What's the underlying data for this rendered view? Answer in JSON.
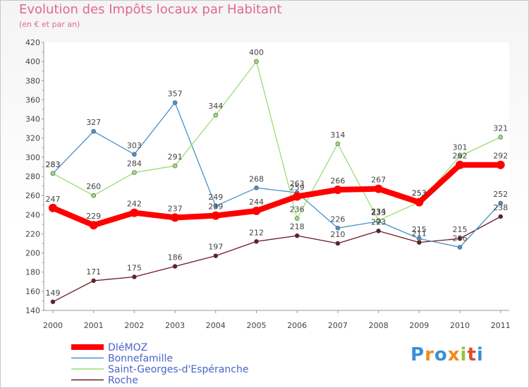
{
  "chart_data": {
    "type": "line",
    "title": "Evolution des Impôts locaux par Habitant",
    "subtitle": "(en € et par an)",
    "x": [
      "2000",
      "2001",
      "2002",
      "2003",
      "2004",
      "2005",
      "2006",
      "2007",
      "2008",
      "2009",
      "2010",
      "2011"
    ],
    "ylim": [
      140,
      420
    ],
    "yticks": [
      140,
      160,
      180,
      200,
      220,
      240,
      260,
      280,
      300,
      320,
      340,
      360,
      380,
      400,
      420
    ],
    "grid": false,
    "legend_position": "bottom-left",
    "series": [
      {
        "name": "DIéMOZ",
        "color": "#ff0000",
        "values": [
          247,
          229,
          242,
          237,
          239,
          244,
          259,
          266,
          267,
          253,
          292,
          292
        ],
        "labels": [
          "247",
          "229",
          "242",
          "237",
          "239",
          "244",
          "259",
          "266",
          "267",
          "253",
          "292",
          "292"
        ]
      },
      {
        "name": "Bonnefamille",
        "color": "#4a90c8",
        "values": [
          283,
          327,
          303,
          357,
          249,
          268,
          263,
          226,
          233,
          215,
          206,
          252
        ],
        "labels": [
          "283",
          "327",
          "303",
          "357",
          "249",
          "268",
          "263",
          "226",
          "233",
          "215",
          "206",
          "252"
        ]
      },
      {
        "name": "Saint-Georges-d'Espéranche",
        "color": "#99dd77",
        "values": [
          283,
          260,
          284,
          291,
          344,
          400,
          236,
          314,
          234,
          253,
          301,
          321
        ],
        "labels": [
          "283",
          "260",
          "284",
          "291",
          "344",
          "400",
          "236",
          "314",
          "234",
          "253",
          "301",
          "321"
        ]
      },
      {
        "name": "Roche",
        "color": "#6b1a24",
        "values": [
          149,
          171,
          175,
          186,
          197,
          212,
          218,
          210,
          223,
          211,
          215,
          238
        ],
        "labels": [
          "149",
          "171",
          "175",
          "186",
          "197",
          "212",
          "218",
          "210",
          "223",
          "211",
          "215",
          "238"
        ]
      }
    ]
  },
  "logo": {
    "letters": [
      "P",
      "r",
      "o",
      "x",
      "i",
      "t",
      "i"
    ],
    "colors": [
      "#3b8fd6",
      "#f28a1c",
      "#3b8fd6",
      "#f28a1c",
      "#8cc63f",
      "#e04b2a",
      "#3b8fd6"
    ]
  }
}
